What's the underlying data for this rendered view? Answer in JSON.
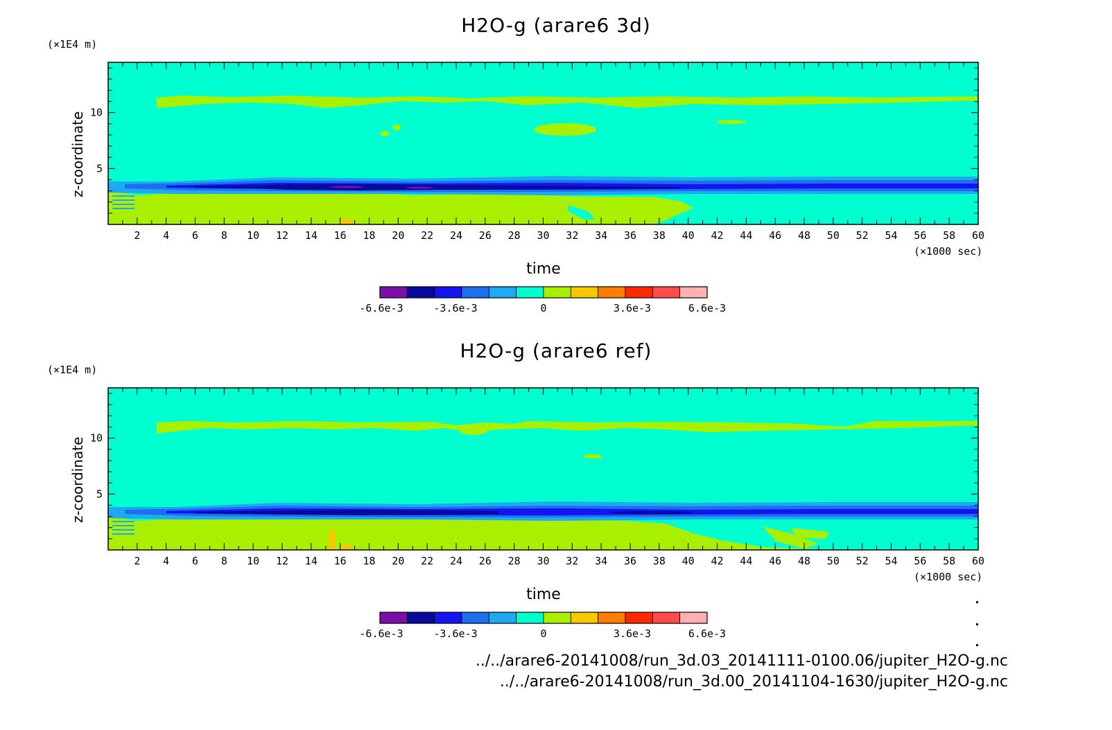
{
  "chart_data": [
    {
      "type": "heatmap",
      "title": "H2O-g (arare6 3d)",
      "xlabel": "time",
      "x_unit": "(×1000 sec)",
      "ylabel": "z-coordinate",
      "y_unit": "(×1E4 m)",
      "xlim": [
        0,
        60
      ],
      "ylim": [
        0,
        14.5
      ],
      "x_ticks": [
        2,
        4,
        6,
        8,
        10,
        12,
        14,
        16,
        18,
        20,
        22,
        24,
        26,
        28,
        30,
        32,
        34,
        36,
        38,
        40,
        42,
        44,
        46,
        48,
        50,
        52,
        54,
        56,
        58,
        60
      ],
      "y_ticks": [
        5,
        10
      ],
      "colorbar": {
        "colors": [
          "#7b0fa8",
          "#0a0a9a",
          "#1414f0",
          "#1e6ef0",
          "#1eaaf0",
          "#00ffd0",
          "#a8f000",
          "#f5c800",
          "#ff7d00",
          "#ff2800",
          "#ff4b4b",
          "#ffb0b0"
        ],
        "labels": [
          "-6.6e-3",
          "-3.6e-3",
          "0",
          "3.6e-3",
          "6.6e-3"
        ],
        "label_positions": [
          0,
          0.227,
          0.5,
          0.773,
          1.0
        ]
      }
    },
    {
      "type": "heatmap",
      "title": "H2O-g (arare6 ref)",
      "xlabel": "time",
      "x_unit": "(×1000 sec)",
      "ylabel": "z-coordinate",
      "y_unit": "(×1E4 m)",
      "xlim": [
        0,
        60
      ],
      "ylim": [
        0,
        14.5
      ],
      "x_ticks": [
        2,
        4,
        6,
        8,
        10,
        12,
        14,
        16,
        18,
        20,
        22,
        24,
        26,
        28,
        30,
        32,
        34,
        36,
        38,
        40,
        42,
        44,
        46,
        48,
        50,
        52,
        54,
        56,
        58,
        60
      ],
      "y_ticks": [
        5,
        10
      ],
      "colorbar": {
        "colors": [
          "#7b0fa8",
          "#0a0a9a",
          "#1414f0",
          "#1e6ef0",
          "#1eaaf0",
          "#00ffd0",
          "#a8f000",
          "#f5c800",
          "#ff7d00",
          "#ff2800",
          "#ff4b4b",
          "#ffb0b0"
        ],
        "labels": [
          "-6.6e-3",
          "-3.6e-3",
          "0",
          "3.6e-3",
          "6.6e-3"
        ],
        "label_positions": [
          0,
          0.227,
          0.5,
          0.773,
          1.0
        ]
      }
    }
  ],
  "files": [
    "../../arare6-20141008/run_3d.03_20141111-0100.06/jupiter_H2O-g.nc",
    "../../arare6-20141008/run_3d.00_20141104-1630/jupiter_H2O-g.nc"
  ]
}
